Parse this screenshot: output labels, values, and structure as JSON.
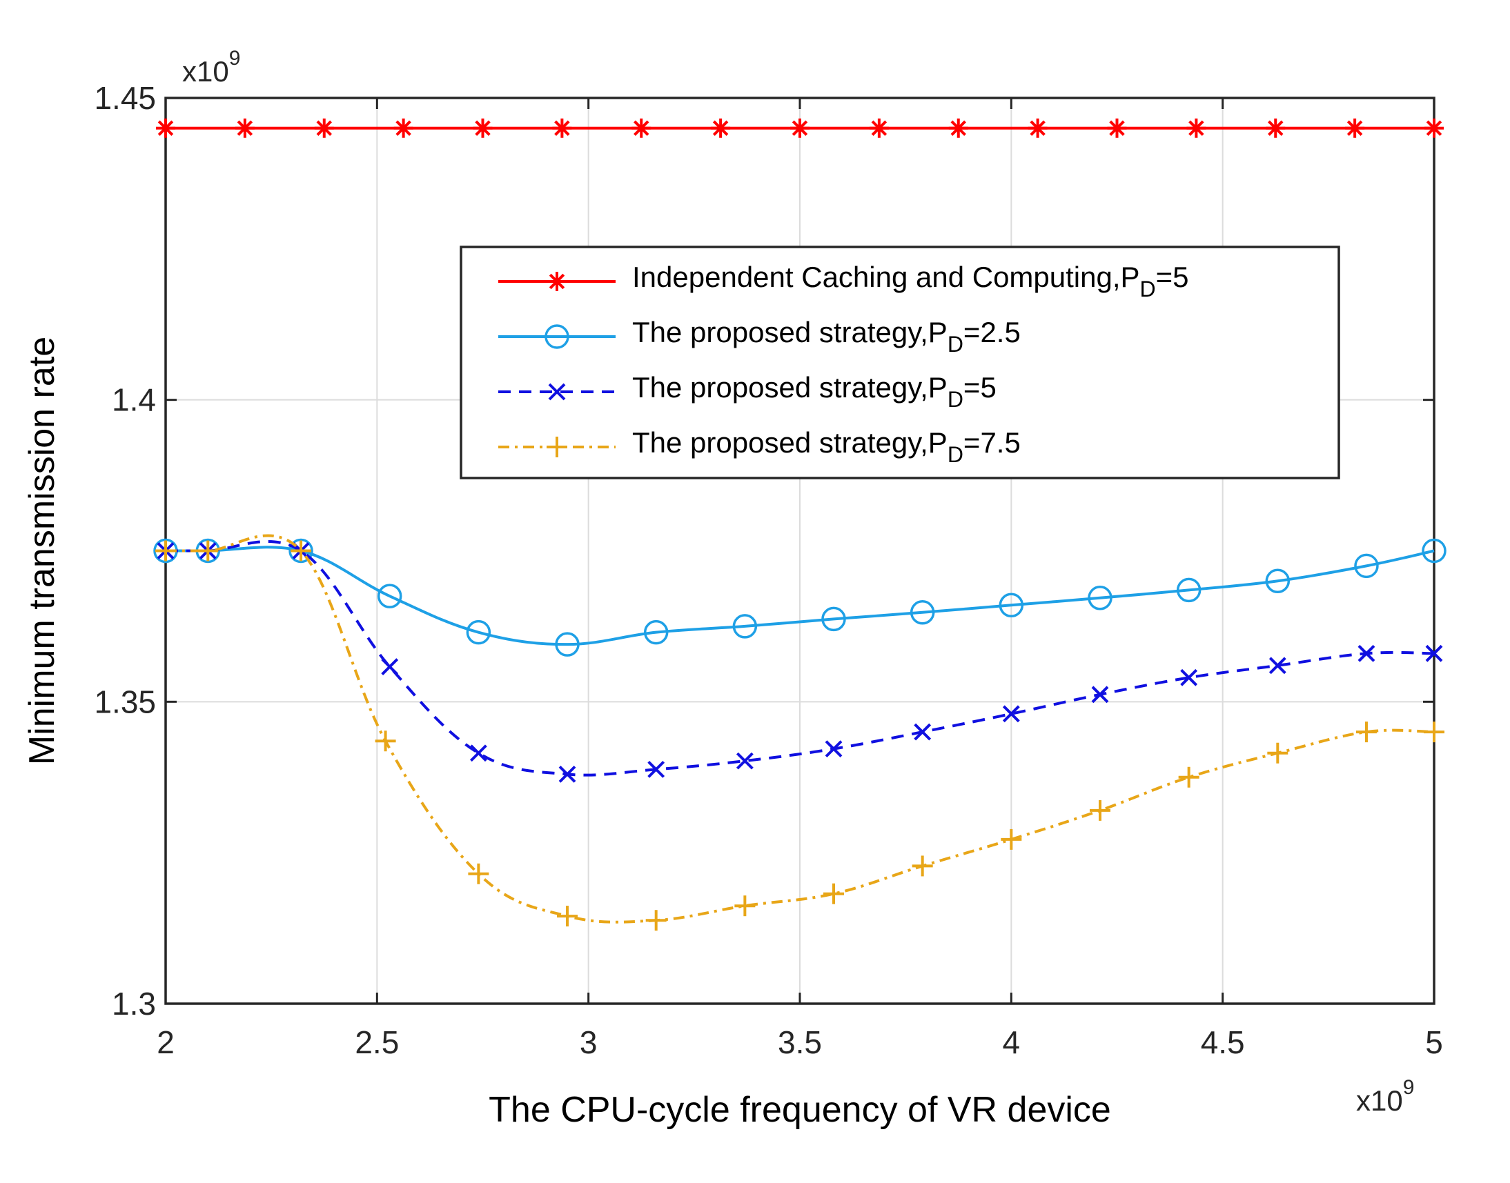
{
  "chart_data": {
    "type": "line",
    "xlabel": "The CPU-cycle frequency of VR device",
    "ylabel": "Minimum transmission rate",
    "x_multiplier": {
      "base": "x10",
      "exp": "9"
    },
    "y_multiplier": {
      "base": "x10",
      "exp": "9"
    },
    "xlim": [
      2,
      5
    ],
    "ylim": [
      1.3,
      1.45
    ],
    "xticks": [
      2,
      2.5,
      3,
      3.5,
      4,
      4.5,
      5
    ],
    "xtick_labels": [
      "2",
      "2.5",
      "3",
      "3.5",
      "4",
      "4.5",
      "5"
    ],
    "yticks": [
      1.3,
      1.35,
      1.4,
      1.45
    ],
    "ytick_labels": [
      "1.3",
      "1.35",
      "1.4",
      "1.45"
    ],
    "grid": true,
    "legend_position": "upper-right",
    "series": [
      {
        "name": "Independent Caching and Computing,P",
        "name_sub": "D",
        "name_suffix": "=5",
        "color": "#ff0000",
        "line": "solid",
        "marker": "asterisk",
        "x": [
          2,
          2.1875,
          2.375,
          2.5625,
          2.75,
          2.9375,
          3.125,
          3.3125,
          3.5,
          3.6875,
          3.875,
          4.0625,
          4.25,
          4.4375,
          4.625,
          4.8125,
          5
        ],
        "y": [
          1.445,
          1.445,
          1.445,
          1.445,
          1.445,
          1.445,
          1.445,
          1.445,
          1.445,
          1.445,
          1.445,
          1.445,
          1.445,
          1.445,
          1.445,
          1.445,
          1.445
        ]
      },
      {
        "name": "The proposed strategy,P",
        "name_sub": "D",
        "name_suffix": "=2.5",
        "color": "#1ea0e6",
        "line": "solid",
        "marker": "circle",
        "x": [
          2,
          2.1,
          2.32,
          2.53,
          2.74,
          2.95,
          3.16,
          3.37,
          3.58,
          3.79,
          4.0,
          4.21,
          4.42,
          4.63,
          4.84,
          5
        ],
        "y": [
          1.375,
          1.375,
          1.375,
          1.3675,
          1.3615,
          1.3595,
          1.3615,
          1.3625,
          1.3637,
          1.3648,
          1.366,
          1.3672,
          1.3685,
          1.37,
          1.3725,
          1.375
        ]
      },
      {
        "name": "The proposed strategy,P",
        "name_sub": "D",
        "name_suffix": "=5",
        "color": "#1010e0",
        "line": "dashed",
        "marker": "x",
        "x": [
          2,
          2.1,
          2.32,
          2.53,
          2.74,
          2.95,
          3.16,
          3.37,
          3.58,
          3.79,
          4.0,
          4.21,
          4.42,
          4.63,
          4.84,
          5
        ],
        "y": [
          1.375,
          1.375,
          1.375,
          1.3558,
          1.3415,
          1.338,
          1.3388,
          1.3402,
          1.3422,
          1.345,
          1.348,
          1.3512,
          1.354,
          1.356,
          1.358,
          1.358
        ]
      },
      {
        "name": "The proposed strategy,P",
        "name_sub": "D",
        "name_suffix": "=7.5",
        "color": "#e8a618",
        "line": "dashdot",
        "marker": "plus",
        "x": [
          2,
          2.1,
          2.32,
          2.52,
          2.74,
          2.95,
          3.16,
          3.37,
          3.58,
          3.79,
          4.0,
          4.21,
          4.42,
          4.63,
          4.84,
          5
        ],
        "y": [
          1.375,
          1.375,
          1.375,
          1.3435,
          1.3215,
          1.3145,
          1.3138,
          1.3162,
          1.3182,
          1.3228,
          1.3272,
          1.332,
          1.3375,
          1.3415,
          1.345,
          1.345
        ]
      }
    ]
  }
}
